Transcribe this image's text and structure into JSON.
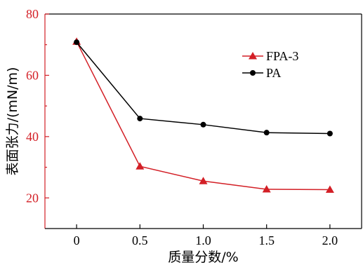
{
  "chart_data": {
    "type": "line",
    "xlabel": "质量分数/%",
    "ylabel": "表面张力/(mN/m)",
    "xlim": [
      -0.25,
      2.25
    ],
    "ylim": [
      10,
      80
    ],
    "x_ticks": [
      "0",
      "0.5",
      "1.0",
      "1.5",
      "2.0"
    ],
    "x_tick_values": [
      0,
      0.5,
      1.0,
      1.5,
      2.0
    ],
    "y_ticks": [
      "20",
      "40",
      "60",
      "80"
    ],
    "y_tick_values": [
      20,
      40,
      60,
      80
    ],
    "grid": false,
    "legend_position": "top-right",
    "x": [
      0,
      0.5,
      1.0,
      1.5,
      2.0
    ],
    "series": [
      {
        "name": "FPA-3",
        "values": [
          71.0,
          30.3,
          25.5,
          22.8,
          22.7
        ],
        "color": "#d31f26",
        "marker": "triangle"
      },
      {
        "name": "PA",
        "values": [
          70.8,
          45.9,
          43.9,
          41.3,
          41.0
        ],
        "color": "#000000",
        "marker": "circle"
      }
    ],
    "left_axis_color": "#d31f26"
  }
}
